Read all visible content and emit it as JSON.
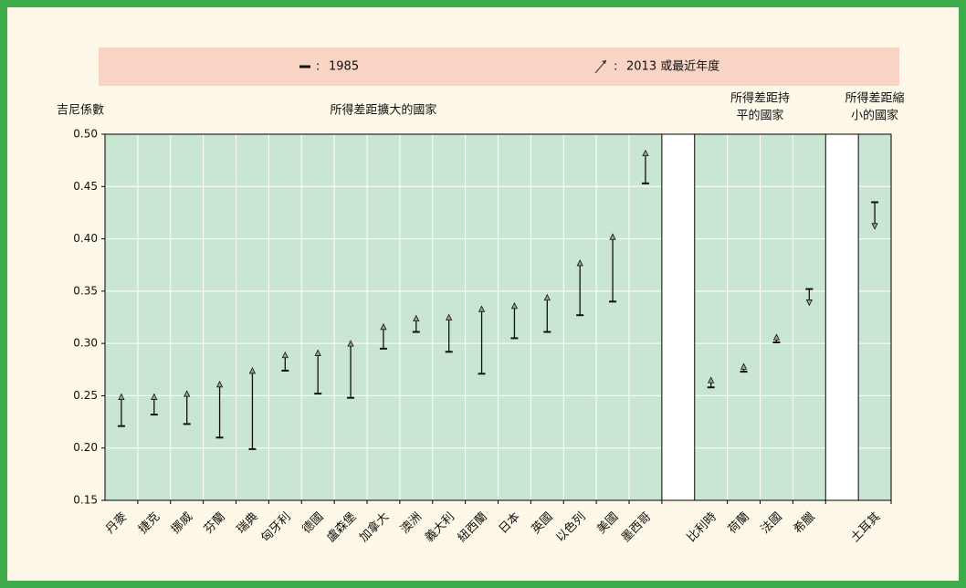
{
  "chart_data": {
    "type": "range-arrow",
    "ylabel": "吉尼係數",
    "panel_titles": [
      [
        "所得差距擴大的國家"
      ],
      [
        "所得差距持",
        "平的國家"
      ],
      [
        "所得差距縮",
        "小的國家"
      ]
    ],
    "legend_separator": ":",
    "categories": [
      "丹麥",
      "捷克",
      "挪威",
      "芬蘭",
      "瑞典",
      "匈牙利",
      "德國",
      "盧森堡",
      "加拿大",
      "澳洲",
      "義大利",
      "紐西蘭",
      "日本",
      "英國",
      "以色列",
      "美國",
      "墨西哥",
      null,
      "比利時",
      "荷蘭",
      "法國",
      "希臘",
      null,
      "土耳其"
    ],
    "series": [
      {
        "name": "1985",
        "color": "#111111",
        "values": [
          0.221,
          0.232,
          0.223,
          0.21,
          0.199,
          0.274,
          0.252,
          0.248,
          0.295,
          0.311,
          0.292,
          0.271,
          0.305,
          0.311,
          0.327,
          0.34,
          0.453,
          null,
          0.258,
          0.273,
          0.301,
          0.352,
          null,
          0.435
        ]
      },
      {
        "name": "2013 或最近年度",
        "color": "#9aa0a0",
        "values": [
          0.249,
          0.249,
          0.252,
          0.261,
          0.274,
          0.289,
          0.291,
          0.3,
          0.316,
          0.324,
          0.325,
          0.333,
          0.336,
          0.344,
          0.377,
          0.402,
          0.482,
          null,
          0.265,
          0.278,
          0.306,
          0.339,
          null,
          0.412
        ]
      }
    ],
    "ylim": [
      0.15,
      0.5
    ],
    "yticks": [
      0.15,
      {
        "value": 0.2,
        "label": "0.20"
      },
      0.25,
      {
        "value": 0.3,
        "label": "0.30"
      },
      0.35,
      {
        "value": 0.4,
        "label": "0.40"
      },
      0.45,
      {
        "value": 0.5,
        "label": "0.50"
      }
    ],
    "grid": true,
    "plot_color": "#c9e6d3"
  }
}
